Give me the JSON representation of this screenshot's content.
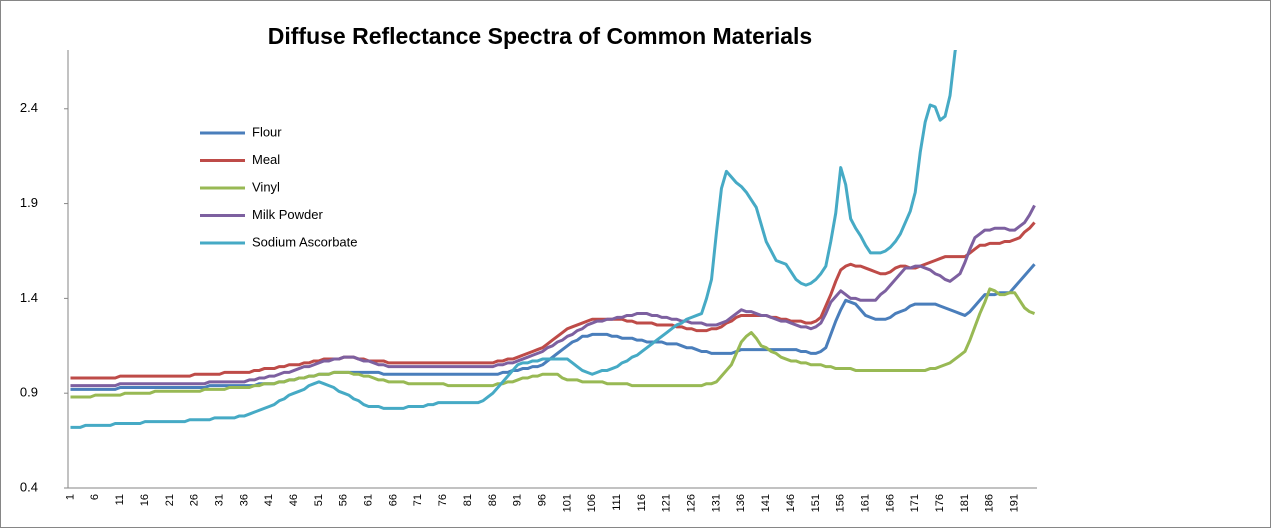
{
  "chart_data": {
    "type": "line",
    "title": "Diffuse Reflectance Spectra of Common Materials",
    "categories": [
      1,
      null,
      null,
      null,
      null,
      6,
      null,
      null,
      null,
      null,
      11,
      null,
      null,
      null,
      null,
      16,
      null,
      null,
      null,
      null,
      21,
      null,
      null,
      null,
      null,
      26,
      null,
      null,
      null,
      null,
      31,
      null,
      null,
      null,
      null,
      36,
      null,
      null,
      null,
      null,
      41,
      null,
      null,
      null,
      null,
      46,
      null,
      null,
      null,
      null,
      51,
      null,
      null,
      null,
      null,
      56,
      null,
      null,
      null,
      null,
      61,
      null,
      null,
      null,
      null,
      66,
      null,
      null,
      null,
      null,
      71,
      null,
      null,
      null,
      null,
      76,
      null,
      null,
      null,
      null,
      81,
      null,
      null,
      null,
      null,
      86,
      null,
      null,
      null,
      null,
      91,
      null,
      null,
      null,
      null,
      96,
      null,
      null,
      null,
      null,
      101,
      null,
      null,
      null,
      null,
      106,
      null,
      null,
      null,
      null,
      111,
      null,
      null,
      null,
      null,
      116,
      null,
      null,
      null,
      null,
      121,
      null,
      null,
      null,
      null,
      126,
      null,
      null,
      null,
      null,
      131,
      null,
      null,
      null,
      null,
      136,
      null,
      null,
      null,
      null,
      141,
      null,
      null,
      null,
      null,
      146,
      null,
      null,
      null,
      null,
      151,
      null,
      null,
      null,
      null,
      156,
      null,
      null,
      null,
      null,
      161,
      null,
      null,
      null,
      null,
      166,
      null,
      null,
      null,
      null,
      171,
      null,
      null,
      null,
      null,
      176,
      null,
      null,
      null,
      null,
      181,
      null,
      null,
      null,
      null,
      186,
      null,
      null,
      null,
      null,
      191,
      null,
      null,
      null,
      null
    ],
    "series": [
      {
        "name": "Flour",
        "color": "#4a7ebb",
        "values": [
          0.92,
          0.92,
          0.92,
          0.92,
          0.92,
          0.92,
          0.92,
          0.92,
          0.92,
          0.92,
          0.93,
          0.93,
          0.93,
          0.93,
          0.93,
          0.93,
          0.93,
          0.93,
          0.93,
          0.93,
          0.93,
          0.93,
          0.93,
          0.93,
          0.93,
          0.93,
          0.93,
          0.93,
          0.94,
          0.94,
          0.94,
          0.94,
          0.94,
          0.94,
          0.94,
          0.94,
          0.94,
          0.94,
          0.95,
          0.95,
          0.95,
          0.95,
          0.96,
          0.96,
          0.97,
          0.97,
          0.98,
          0.98,
          0.99,
          0.99,
          1.0,
          1.0,
          1.0,
          1.01,
          1.01,
          1.01,
          1.01,
          1.01,
          1.01,
          1.01,
          1.01,
          1.01,
          1.01,
          1.0,
          1.0,
          1.0,
          1.0,
          1.0,
          1.0,
          1.0,
          1.0,
          1.0,
          1.0,
          1.0,
          1.0,
          1.0,
          1.0,
          1.0,
          1.0,
          1.0,
          1.0,
          1.0,
          1.0,
          1.0,
          1.0,
          1.0,
          1.0,
          1.01,
          1.01,
          1.02,
          1.02,
          1.03,
          1.03,
          1.04,
          1.04,
          1.05,
          1.07,
          1.09,
          1.11,
          1.13,
          1.15,
          1.17,
          1.18,
          1.2,
          1.2,
          1.21,
          1.21,
          1.21,
          1.21,
          1.2,
          1.2,
          1.19,
          1.19,
          1.19,
          1.18,
          1.18,
          1.17,
          1.17,
          1.17,
          1.17,
          1.16,
          1.16,
          1.16,
          1.15,
          1.14,
          1.14,
          1.13,
          1.12,
          1.12,
          1.11,
          1.11,
          1.11,
          1.11,
          1.11,
          1.12,
          1.13,
          1.13,
          1.13,
          1.13,
          1.13,
          1.13,
          1.13,
          1.13,
          1.13,
          1.13,
          1.13,
          1.13,
          1.12,
          1.12,
          1.11,
          1.11,
          1.12,
          1.14,
          1.21,
          1.28,
          1.34,
          1.39,
          1.38,
          1.37,
          1.34,
          1.31,
          1.3,
          1.29,
          1.29,
          1.29,
          1.3,
          1.32,
          1.33,
          1.34,
          1.36,
          1.37,
          1.37,
          1.37,
          1.37,
          1.37,
          1.36,
          1.35,
          1.34,
          1.33,
          1.32,
          1.31,
          1.33,
          1.36,
          1.39,
          1.42,
          1.42,
          1.42,
          1.43,
          1.43,
          1.43,
          1.46,
          1.49,
          1.52,
          1.55,
          1.58
        ]
      },
      {
        "name": "Meal",
        "color": "#be4b48",
        "values": [
          0.98,
          0.98,
          0.98,
          0.98,
          0.98,
          0.98,
          0.98,
          0.98,
          0.98,
          0.98,
          0.99,
          0.99,
          0.99,
          0.99,
          0.99,
          0.99,
          0.99,
          0.99,
          0.99,
          0.99,
          0.99,
          0.99,
          0.99,
          0.99,
          0.99,
          1.0,
          1.0,
          1.0,
          1.0,
          1.0,
          1.0,
          1.01,
          1.01,
          1.01,
          1.01,
          1.01,
          1.01,
          1.02,
          1.02,
          1.03,
          1.03,
          1.03,
          1.04,
          1.04,
          1.05,
          1.05,
          1.05,
          1.06,
          1.06,
          1.07,
          1.07,
          1.08,
          1.08,
          1.08,
          1.08,
          1.09,
          1.09,
          1.09,
          1.08,
          1.08,
          1.07,
          1.07,
          1.07,
          1.07,
          1.06,
          1.06,
          1.06,
          1.06,
          1.06,
          1.06,
          1.06,
          1.06,
          1.06,
          1.06,
          1.06,
          1.06,
          1.06,
          1.06,
          1.06,
          1.06,
          1.06,
          1.06,
          1.06,
          1.06,
          1.06,
          1.06,
          1.07,
          1.07,
          1.08,
          1.08,
          1.09,
          1.1,
          1.11,
          1.12,
          1.13,
          1.14,
          1.16,
          1.18,
          1.2,
          1.22,
          1.24,
          1.25,
          1.26,
          1.27,
          1.28,
          1.29,
          1.29,
          1.29,
          1.29,
          1.29,
          1.29,
          1.29,
          1.28,
          1.28,
          1.27,
          1.27,
          1.27,
          1.27,
          1.26,
          1.26,
          1.26,
          1.26,
          1.25,
          1.25,
          1.24,
          1.24,
          1.23,
          1.23,
          1.23,
          1.24,
          1.24,
          1.25,
          1.27,
          1.28,
          1.3,
          1.31,
          1.31,
          1.31,
          1.31,
          1.31,
          1.31,
          1.3,
          1.3,
          1.29,
          1.29,
          1.28,
          1.28,
          1.28,
          1.27,
          1.27,
          1.28,
          1.3,
          1.36,
          1.42,
          1.49,
          1.55,
          1.57,
          1.58,
          1.57,
          1.57,
          1.56,
          1.55,
          1.54,
          1.53,
          1.53,
          1.54,
          1.56,
          1.57,
          1.57,
          1.56,
          1.56,
          1.57,
          1.58,
          1.59,
          1.6,
          1.61,
          1.62,
          1.62,
          1.62,
          1.62,
          1.62,
          1.64,
          1.66,
          1.68,
          1.68,
          1.69,
          1.69,
          1.69,
          1.7,
          1.7,
          1.71,
          1.72,
          1.75,
          1.77,
          1.8
        ]
      },
      {
        "name": "Vinyl",
        "color": "#98b954",
        "values": [
          0.88,
          0.88,
          0.88,
          0.88,
          0.88,
          0.89,
          0.89,
          0.89,
          0.89,
          0.89,
          0.89,
          0.9,
          0.9,
          0.9,
          0.9,
          0.9,
          0.9,
          0.91,
          0.91,
          0.91,
          0.91,
          0.91,
          0.91,
          0.91,
          0.91,
          0.91,
          0.91,
          0.92,
          0.92,
          0.92,
          0.92,
          0.92,
          0.93,
          0.93,
          0.93,
          0.93,
          0.93,
          0.94,
          0.94,
          0.95,
          0.95,
          0.95,
          0.96,
          0.96,
          0.97,
          0.97,
          0.98,
          0.98,
          0.99,
          0.99,
          1.0,
          1.0,
          1.0,
          1.01,
          1.01,
          1.01,
          1.01,
          1.0,
          1.0,
          0.99,
          0.99,
          0.98,
          0.97,
          0.97,
          0.96,
          0.96,
          0.96,
          0.96,
          0.95,
          0.95,
          0.95,
          0.95,
          0.95,
          0.95,
          0.95,
          0.95,
          0.94,
          0.94,
          0.94,
          0.94,
          0.94,
          0.94,
          0.94,
          0.94,
          0.94,
          0.94,
          0.95,
          0.95,
          0.96,
          0.96,
          0.97,
          0.98,
          0.98,
          0.99,
          0.99,
          1.0,
          1.0,
          1.0,
          1.0,
          0.98,
          0.97,
          0.97,
          0.97,
          0.96,
          0.96,
          0.96,
          0.96,
          0.96,
          0.95,
          0.95,
          0.95,
          0.95,
          0.95,
          0.94,
          0.94,
          0.94,
          0.94,
          0.94,
          0.94,
          0.94,
          0.94,
          0.94,
          0.94,
          0.94,
          0.94,
          0.94,
          0.94,
          0.94,
          0.95,
          0.95,
          0.96,
          0.99,
          1.02,
          1.05,
          1.11,
          1.17,
          1.2,
          1.22,
          1.19,
          1.15,
          1.14,
          1.12,
          1.11,
          1.09,
          1.08,
          1.07,
          1.07,
          1.06,
          1.06,
          1.05,
          1.05,
          1.05,
          1.04,
          1.04,
          1.03,
          1.03,
          1.03,
          1.03,
          1.02,
          1.02,
          1.02,
          1.02,
          1.02,
          1.02,
          1.02,
          1.02,
          1.02,
          1.02,
          1.02,
          1.02,
          1.02,
          1.02,
          1.02,
          1.03,
          1.03,
          1.04,
          1.05,
          1.06,
          1.08,
          1.1,
          1.12,
          1.18,
          1.25,
          1.32,
          1.38,
          1.45,
          1.44,
          1.42,
          1.42,
          1.43,
          1.43,
          1.39,
          1.35,
          1.33,
          1.32
        ]
      },
      {
        "name": "Milk Powder",
        "color": "#7d60a0",
        "values": [
          0.94,
          0.94,
          0.94,
          0.94,
          0.94,
          0.94,
          0.94,
          0.94,
          0.94,
          0.94,
          0.95,
          0.95,
          0.95,
          0.95,
          0.95,
          0.95,
          0.95,
          0.95,
          0.95,
          0.95,
          0.95,
          0.95,
          0.95,
          0.95,
          0.95,
          0.95,
          0.95,
          0.95,
          0.96,
          0.96,
          0.96,
          0.96,
          0.96,
          0.96,
          0.96,
          0.96,
          0.97,
          0.97,
          0.98,
          0.98,
          0.99,
          0.99,
          1.0,
          1.01,
          1.01,
          1.02,
          1.03,
          1.04,
          1.04,
          1.05,
          1.06,
          1.07,
          1.07,
          1.08,
          1.08,
          1.09,
          1.09,
          1.09,
          1.08,
          1.07,
          1.07,
          1.06,
          1.05,
          1.05,
          1.04,
          1.04,
          1.04,
          1.04,
          1.04,
          1.04,
          1.04,
          1.04,
          1.04,
          1.04,
          1.04,
          1.04,
          1.04,
          1.04,
          1.04,
          1.04,
          1.04,
          1.04,
          1.04,
          1.04,
          1.04,
          1.04,
          1.05,
          1.05,
          1.06,
          1.06,
          1.07,
          1.08,
          1.09,
          1.1,
          1.11,
          1.12,
          1.14,
          1.15,
          1.17,
          1.18,
          1.2,
          1.21,
          1.23,
          1.24,
          1.26,
          1.27,
          1.28,
          1.28,
          1.29,
          1.29,
          1.3,
          1.3,
          1.31,
          1.31,
          1.32,
          1.32,
          1.32,
          1.31,
          1.31,
          1.3,
          1.3,
          1.29,
          1.29,
          1.28,
          1.28,
          1.27,
          1.27,
          1.27,
          1.26,
          1.26,
          1.26,
          1.27,
          1.28,
          1.3,
          1.32,
          1.34,
          1.33,
          1.33,
          1.32,
          1.31,
          1.31,
          1.3,
          1.29,
          1.28,
          1.28,
          1.27,
          1.26,
          1.25,
          1.25,
          1.24,
          1.25,
          1.27,
          1.32,
          1.38,
          1.41,
          1.44,
          1.42,
          1.4,
          1.4,
          1.39,
          1.39,
          1.39,
          1.39,
          1.42,
          1.44,
          1.47,
          1.5,
          1.53,
          1.56,
          1.56,
          1.57,
          1.57,
          1.56,
          1.55,
          1.53,
          1.52,
          1.5,
          1.49,
          1.51,
          1.53,
          1.59,
          1.66,
          1.72,
          1.74,
          1.76,
          1.76,
          1.77,
          1.77,
          1.77,
          1.76,
          1.76,
          1.78,
          1.8,
          1.84,
          1.89
        ]
      },
      {
        "name": "Sodium Ascorbate",
        "color": "#46aac5",
        "values": [
          0.72,
          0.72,
          0.72,
          0.73,
          0.73,
          0.73,
          0.73,
          0.73,
          0.73,
          0.74,
          0.74,
          0.74,
          0.74,
          0.74,
          0.74,
          0.75,
          0.75,
          0.75,
          0.75,
          0.75,
          0.75,
          0.75,
          0.75,
          0.75,
          0.76,
          0.76,
          0.76,
          0.76,
          0.76,
          0.77,
          0.77,
          0.77,
          0.77,
          0.77,
          0.78,
          0.78,
          0.79,
          0.8,
          0.81,
          0.82,
          0.83,
          0.84,
          0.86,
          0.87,
          0.89,
          0.9,
          0.91,
          0.92,
          0.94,
          0.95,
          0.96,
          0.95,
          0.94,
          0.93,
          0.91,
          0.9,
          0.89,
          0.87,
          0.86,
          0.84,
          0.83,
          0.83,
          0.83,
          0.82,
          0.82,
          0.82,
          0.82,
          0.82,
          0.83,
          0.83,
          0.83,
          0.83,
          0.84,
          0.84,
          0.85,
          0.85,
          0.85,
          0.85,
          0.85,
          0.85,
          0.85,
          0.85,
          0.85,
          0.86,
          0.88,
          0.9,
          0.93,
          0.96,
          0.99,
          1.02,
          1.05,
          1.06,
          1.06,
          1.07,
          1.07,
          1.08,
          1.08,
          1.08,
          1.08,
          1.08,
          1.08,
          1.06,
          1.04,
          1.02,
          1.01,
          1.0,
          1.01,
          1.02,
          1.02,
          1.03,
          1.04,
          1.06,
          1.07,
          1.09,
          1.1,
          1.12,
          1.14,
          1.16,
          1.18,
          1.2,
          1.22,
          1.24,
          1.26,
          1.27,
          1.29,
          1.3,
          1.31,
          1.32,
          1.4,
          1.5,
          1.75,
          1.98,
          2.07,
          2.04,
          2.01,
          1.99,
          1.96,
          1.92,
          1.88,
          1.79,
          1.7,
          1.65,
          1.6,
          1.59,
          1.58,
          1.54,
          1.5,
          1.48,
          1.47,
          1.48,
          1.5,
          1.53,
          1.57,
          1.7,
          1.85,
          2.09,
          2.0,
          1.82,
          1.77,
          1.73,
          1.68,
          1.64,
          1.64,
          1.64,
          1.65,
          1.67,
          1.7,
          1.74,
          1.8,
          1.86,
          1.96,
          2.17,
          2.33,
          2.42,
          2.41,
          2.34,
          2.36,
          2.47,
          2.7,
          2.85,
          null,
          null,
          null,
          null,
          null,
          null,
          null,
          null,
          null,
          null,
          null,
          null,
          null,
          null,
          null
        ]
      }
    ],
    "ylim": [
      0.4,
      2.71
    ],
    "yticks": [
      0.4,
      0.9,
      1.4,
      1.9,
      2.4
    ],
    "grid": false,
    "legend": "left"
  }
}
